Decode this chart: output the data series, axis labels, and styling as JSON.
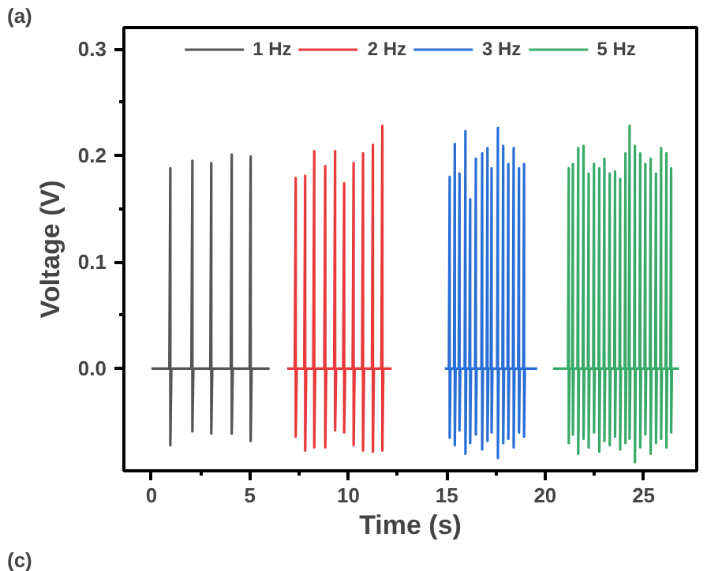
{
  "chart_data": {
    "type": "line",
    "xlabel": "Time (s)",
    "ylabel": "Voltage (V)",
    "annotations": [
      "(a)",
      "(c)"
    ],
    "xlim": [
      -1.4,
      27.7
    ],
    "xticks": [
      0,
      5,
      10,
      15,
      20,
      25
    ],
    "ylim": [
      -0.096,
      0.32
    ],
    "yticks": [
      {
        "value": 0,
        "label": "0.0"
      },
      {
        "value": 0.1,
        "label": "0.1"
      },
      {
        "value": 0.2,
        "label": "0.2"
      },
      {
        "value": 0.3,
        "label": "0.3"
      }
    ],
    "grid": false,
    "legend": "top",
    "marker": "none",
    "line_style": "solid",
    "series": [
      {
        "name": "1 Hz",
        "color": "#555555",
        "x": [
          0,
          0.91,
          0.96,
          0.96,
          1.01,
          2.03,
          2.08,
          2.08,
          2.13,
          2.99,
          3.04,
          3.04,
          3.09,
          4.03,
          4.08,
          4.08,
          4.13,
          4.99,
          5.04,
          5.04,
          5.09,
          6.0
        ],
        "values": [
          0,
          0,
          0.188,
          -0.072,
          0,
          0,
          0.195,
          -0.059,
          0,
          0,
          0.193,
          -0.061,
          0,
          0,
          0.201,
          -0.061,
          0,
          0,
          0.199,
          -0.068,
          0,
          0
        ]
      },
      {
        "name": "2 Hz",
        "color": "#e8393b",
        "x": [
          6.9,
          7.28,
          7.33,
          7.33,
          7.38,
          7.76,
          7.81,
          7.81,
          7.86,
          8.22,
          8.27,
          8.27,
          8.32,
          8.78,
          8.83,
          8.83,
          8.88,
          9.28,
          9.33,
          9.33,
          9.38,
          9.74,
          9.79,
          9.79,
          9.84,
          10.22,
          10.27,
          10.27,
          10.32,
          10.7,
          10.75,
          10.75,
          10.8,
          11.2,
          11.25,
          11.25,
          11.3,
          11.68,
          11.73,
          11.73,
          11.78,
          12.2
        ],
        "values": [
          0,
          0,
          0.179,
          -0.064,
          0,
          0,
          0.181,
          -0.077,
          0,
          0,
          0.204,
          -0.074,
          0,
          0,
          0.19,
          -0.074,
          0,
          0,
          0.204,
          -0.058,
          0,
          0,
          0.174,
          -0.06,
          0,
          0,
          0.193,
          -0.072,
          0,
          0,
          0.202,
          -0.077,
          0,
          0,
          0.21,
          -0.078,
          0,
          0,
          0.228,
          -0.077,
          0,
          0
        ]
      },
      {
        "name": "3 Hz",
        "color": "#2a6fd6",
        "x": [
          14.9,
          15.11,
          15.15,
          15.15,
          15.19,
          15.37,
          15.41,
          15.41,
          15.45,
          15.61,
          15.65,
          15.65,
          15.69,
          15.91,
          15.95,
          15.95,
          15.99,
          16.15,
          16.19,
          16.19,
          16.23,
          16.44,
          16.48,
          16.48,
          16.52,
          16.76,
          16.8,
          16.8,
          16.84,
          17.03,
          17.07,
          17.07,
          17.11,
          17.24,
          17.28,
          17.28,
          17.32,
          17.56,
          17.6,
          17.6,
          17.64,
          17.83,
          17.87,
          17.87,
          17.91,
          18.09,
          18.13,
          18.13,
          18.17,
          18.36,
          18.4,
          18.4,
          18.44,
          18.63,
          18.67,
          18.67,
          18.71,
          18.89,
          18.93,
          18.93,
          18.97,
          19.6
        ],
        "values": [
          0,
          0,
          0.18,
          -0.065,
          0,
          0,
          0.211,
          -0.072,
          0,
          0,
          0.183,
          -0.058,
          0,
          0,
          0.223,
          -0.08,
          0,
          0,
          0.159,
          -0.07,
          0,
          0,
          0.197,
          -0.062,
          0,
          0,
          0.202,
          -0.076,
          0,
          0,
          0.207,
          -0.068,
          0,
          0,
          0.188,
          -0.06,
          0,
          0,
          0.226,
          -0.084,
          0,
          0,
          0.209,
          -0.07,
          0,
          0,
          0.192,
          -0.066,
          0,
          0,
          0.207,
          -0.074,
          0,
          0,
          0.188,
          -0.06,
          0,
          0,
          0.192,
          -0.064,
          0,
          0
        ]
      },
      {
        "name": "5 Hz",
        "color": "#3aaa6a",
        "x": [
          20.4,
          21.16,
          21.2,
          21.2,
          21.24,
          21.37,
          21.41,
          21.41,
          21.45,
          21.64,
          21.68,
          21.68,
          21.72,
          21.91,
          21.95,
          21.95,
          21.99,
          22.17,
          22.21,
          22.21,
          22.25,
          22.44,
          22.48,
          22.48,
          22.52,
          22.71,
          22.75,
          22.75,
          22.79,
          22.97,
          23.01,
          23.01,
          23.05,
          23.24,
          23.28,
          23.28,
          23.32,
          23.51,
          23.55,
          23.55,
          23.59,
          23.77,
          23.81,
          23.81,
          23.85,
          24.04,
          24.08,
          24.08,
          24.12,
          24.25,
          24.29,
          24.29,
          24.33,
          24.52,
          24.56,
          24.56,
          24.6,
          24.79,
          24.83,
          24.83,
          24.87,
          25.05,
          25.09,
          25.09,
          25.13,
          25.32,
          25.36,
          25.36,
          25.4,
          25.59,
          25.63,
          25.63,
          25.67,
          25.85,
          25.89,
          25.89,
          25.93,
          26.12,
          26.16,
          26.16,
          26.2,
          26.36,
          26.4,
          26.4,
          26.44,
          26.8
        ],
        "values": [
          0,
          0,
          0.188,
          -0.07,
          0,
          0,
          0.192,
          -0.062,
          0,
          0,
          0.207,
          -0.08,
          0,
          0,
          0.209,
          -0.066,
          0,
          0,
          0.183,
          -0.074,
          0,
          0,
          0.192,
          -0.06,
          0,
          0,
          0.188,
          -0.078,
          0,
          0,
          0.197,
          -0.068,
          0,
          0,
          0.183,
          -0.072,
          0,
          0,
          0.185,
          -0.064,
          0,
          0,
          0.178,
          -0.076,
          0,
          0,
          0.202,
          -0.07,
          0,
          0,
          0.228,
          -0.066,
          0,
          0,
          0.209,
          -0.088,
          0,
          0,
          0.202,
          -0.074,
          0,
          0,
          0.192,
          -0.062,
          0,
          0,
          0.197,
          -0.08,
          0,
          0,
          0.183,
          -0.07,
          0,
          0,
          0.207,
          -0.066,
          0,
          0,
          0.202,
          -0.074,
          0,
          0,
          0.188,
          -0.06,
          0,
          0
        ]
      }
    ]
  }
}
